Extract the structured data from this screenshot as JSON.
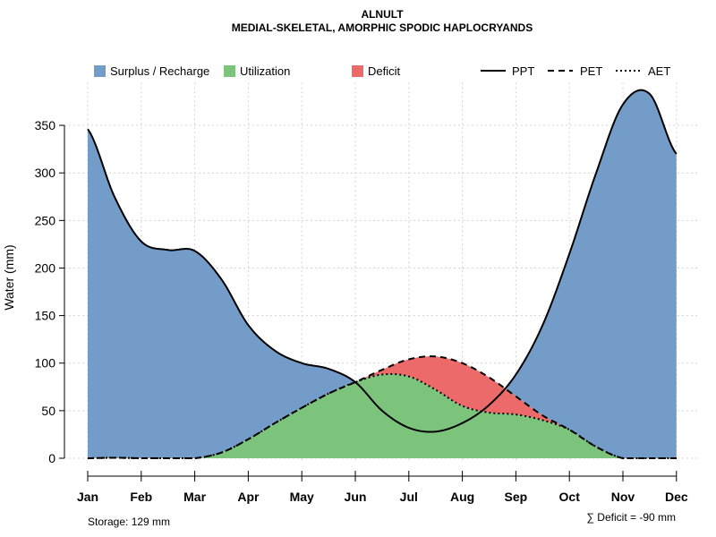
{
  "chart_data": {
    "type": "area",
    "title": "ALNULT",
    "subtitle": "MEDIAL-SKELETAL, AMORPHIC SPODIC HAPLOCRYANDS",
    "ylabel": "Water (mm)",
    "xlabel": "",
    "ylim": [
      0,
      395
    ],
    "yticks": [
      0,
      50,
      100,
      150,
      200,
      250,
      300,
      350
    ],
    "categories": [
      "Jan",
      "Feb",
      "Mar",
      "Apr",
      "May",
      "Jun",
      "Jul",
      "Aug",
      "Sep",
      "Oct",
      "Nov",
      "Dec"
    ],
    "grid": true,
    "legend": {
      "position": "top",
      "areas": [
        {
          "label": "Surplus / Recharge",
          "color": "#739CC8"
        },
        {
          "label": "Utilization",
          "color": "#7CC47C"
        },
        {
          "label": "Deficit",
          "color": "#EC6A6A"
        }
      ],
      "lines": [
        {
          "label": "PPT",
          "dash": "solid"
        },
        {
          "label": "PET",
          "dash": "dashed"
        },
        {
          "label": "AET",
          "dash": "dotted"
        }
      ]
    },
    "series": [
      {
        "name": "PPT",
        "x": [
          0,
          0.5,
          1,
          1.5,
          2,
          2.5,
          3,
          3.5,
          4,
          4.5,
          5,
          5.5,
          6,
          6.5,
          7,
          7.5,
          8,
          8.5,
          9,
          9.5,
          10,
          10.5,
          11
        ],
        "values": [
          346,
          275,
          228,
          219,
          218,
          188,
          140,
          113,
          100,
          94,
          80,
          50,
          32,
          28,
          37,
          56,
          88,
          140,
          215,
          300,
          372,
          383,
          320
        ]
      },
      {
        "name": "PET",
        "x": [
          0,
          0.5,
          1,
          1.5,
          2,
          2.5,
          3,
          3.5,
          4,
          4.5,
          5,
          5.5,
          6,
          6.5,
          7,
          7.5,
          8,
          8.5,
          9,
          9.5,
          10,
          10.5,
          11
        ],
        "values": [
          0,
          0.5,
          0,
          0,
          0,
          6,
          20,
          37,
          53,
          68,
          80,
          93,
          104,
          107,
          100,
          85,
          65,
          45,
          30,
          12,
          0,
          0,
          0
        ]
      },
      {
        "name": "AET",
        "x": [
          0,
          0.5,
          1,
          1.5,
          2,
          2.5,
          3,
          3.5,
          4,
          4.5,
          5,
          5.5,
          6,
          6.5,
          7,
          7.5,
          8,
          8.5,
          9,
          9.5,
          10,
          10.5,
          11
        ],
        "values": [
          0,
          0.5,
          0,
          0,
          0,
          6,
          20,
          37,
          53,
          68,
          80,
          88,
          86,
          72,
          55,
          48,
          46,
          40,
          30,
          12,
          0,
          0,
          0
        ]
      }
    ],
    "annotations": {
      "storage": "Storage: 129 mm",
      "deficit": "∑ Deficit = -90 mm"
    }
  }
}
